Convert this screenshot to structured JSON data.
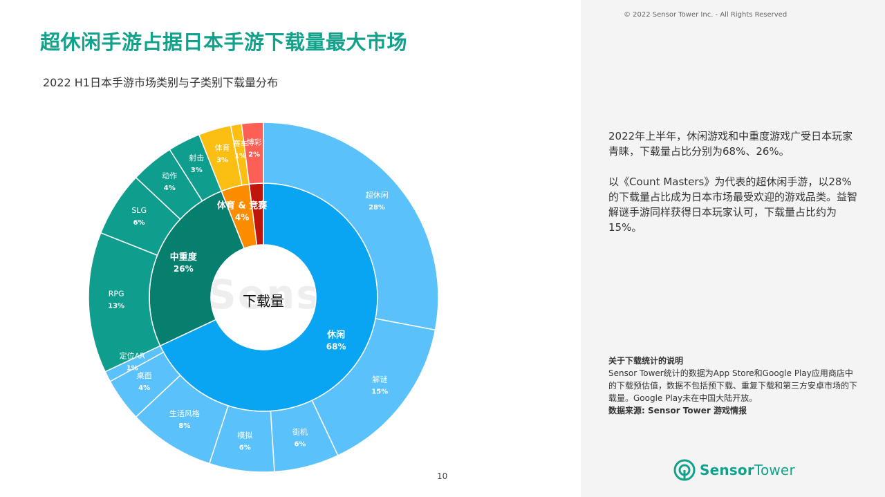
{
  "header": {
    "title": "超休闲手游占据日本手游下载量最大市场",
    "subtitle": "2022 H1日本手游市场类别与子类别下载量分布",
    "copyright": "© 2022 Sensor Tower Inc. - All Rights Reserved"
  },
  "sidebar": {
    "paragraph1": "2022年上半年，休闲游戏和中重度游戏广受日本玩家青睐，下载量占比分别为68%、26%。",
    "paragraph2": "以《Count Masters》为代表的超休闲手游，以28%的下载量占比成为日本市场最受欢迎的游戏品类。益智解谜手游同样获得日本玩家认可，下载量占比约为15%。",
    "note_heading": "关于下载统计的说明",
    "note_body": "Sensor Tower统计的数据为App Store和Google Play应用商店中的下载预估值，数据不包括预下载、重复下载和第三方安卓市场的下载量。Google Play未在中国大陆开放。",
    "source": "数据来源: Sensor Tower 游戏情报"
  },
  "logo": {
    "brand": "Sensor",
    "brand2": "Tower",
    "watermark": "Sensor"
  },
  "footer": {
    "page_number": "10"
  },
  "chart_data": {
    "type": "pie",
    "center_label": "下载量",
    "inner": [
      {
        "label": "休闲",
        "value": 68,
        "value_label": "68%",
        "color": "#0aa5f2"
      },
      {
        "label": "中重度",
        "value": 26,
        "value_label": "26%",
        "color": "#077f6e"
      },
      {
        "label": "体育 & 竞赛",
        "value": 4,
        "value_label": "4%",
        "color": "#fb8c00"
      },
      {
        "label": "",
        "value": 2,
        "value_label": "",
        "color": "#c0150b"
      }
    ],
    "outer": [
      {
        "label": "超休闲",
        "value": 28,
        "value_label": "28%",
        "color": "#5bc1fb",
        "parent": "休闲"
      },
      {
        "label": "解谜",
        "value": 15,
        "value_label": "15%",
        "color": "#5bc1fb",
        "parent": "休闲"
      },
      {
        "label": "街机",
        "value": 6,
        "value_label": "6%",
        "color": "#5bc1fb",
        "parent": "休闲"
      },
      {
        "label": "模拟",
        "value": 6,
        "value_label": "6%",
        "color": "#5bc1fb",
        "parent": "休闲"
      },
      {
        "label": "生活风格",
        "value": 8,
        "value_label": "8%",
        "color": "#5bc1fb",
        "parent": "休闲"
      },
      {
        "label": "桌面",
        "value": 4,
        "value_label": "4%",
        "color": "#5bc1fb",
        "parent": "休闲"
      },
      {
        "label": "定位AR",
        "value": 1,
        "value_label": "1%",
        "color": "#5bc1fb",
        "parent": "休闲"
      },
      {
        "label": "RPG",
        "value": 13,
        "value_label": "13%",
        "color": "#0f9e8d",
        "parent": "中重度"
      },
      {
        "label": "SLG",
        "value": 6,
        "value_label": "6%",
        "color": "#0f9e8d",
        "parent": "中重度"
      },
      {
        "label": "动作",
        "value": 4,
        "value_label": "4%",
        "color": "#0f9e8d",
        "parent": "中重度"
      },
      {
        "label": "射击",
        "value": 3,
        "value_label": "3%",
        "color": "#0f9e8d",
        "parent": "中重度"
      },
      {
        "label": "体育",
        "value": 3,
        "value_label": "3%",
        "color": "#fbbe12",
        "parent": "体育 & 竞赛"
      },
      {
        "label": "赛车",
        "value": 1,
        "value_label": "1%",
        "color": "#fbbe12",
        "parent": "体育 & 竞赛"
      },
      {
        "label": "博彩",
        "value": 2,
        "value_label": "2%",
        "color": "#fb5f55",
        "parent": ""
      }
    ]
  }
}
